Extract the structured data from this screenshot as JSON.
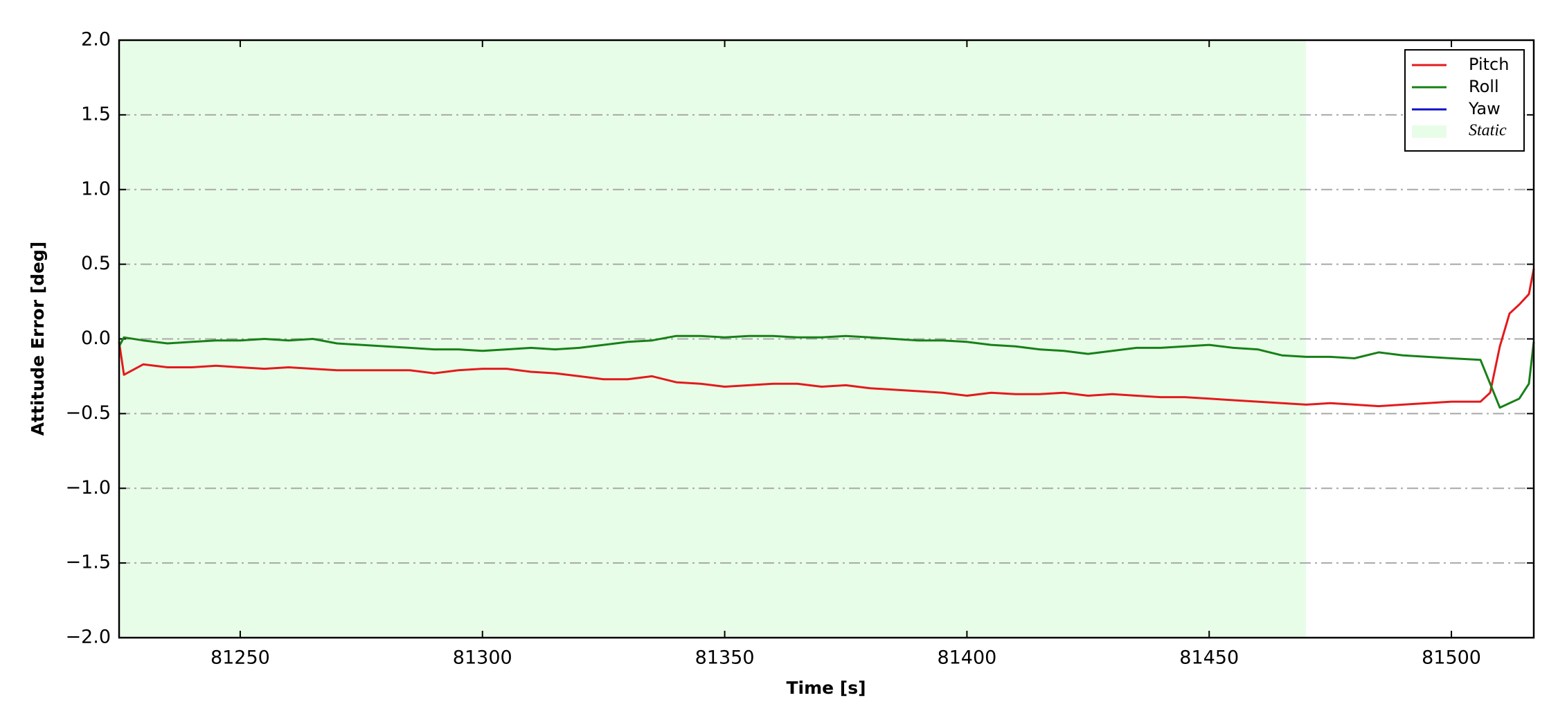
{
  "chart_data": {
    "type": "line",
    "xlabel": "Time [s]",
    "ylabel": "Attitude Error [deg]",
    "xlim": [
      81225,
      81517
    ],
    "ylim": [
      -2.0,
      2.0
    ],
    "xticks": [
      81250,
      81300,
      81350,
      81400,
      81450,
      81500
    ],
    "yticks": [
      {
        "value": -2.0,
        "label": "−2.0"
      },
      {
        "value": -1.5,
        "label": "−1.5"
      },
      {
        "value": -1.0,
        "label": "−1.0"
      },
      {
        "value": -0.5,
        "label": "−0.5"
      },
      {
        "value": 0.0,
        "label": "0.0"
      },
      {
        "value": 0.5,
        "label": "0.5"
      },
      {
        "value": 1.0,
        "label": "1.0"
      },
      {
        "value": 1.5,
        "label": "1.5"
      },
      {
        "value": 2.0,
        "label": "2.0"
      }
    ],
    "grid": true,
    "legend": "upper right",
    "static": {
      "name": "Static",
      "color": "#e8fde8",
      "xlim": [
        81225,
        81470
      ]
    },
    "x": [
      81225,
      81226,
      81230,
      81235,
      81240,
      81245,
      81250,
      81255,
      81260,
      81265,
      81270,
      81275,
      81280,
      81285,
      81290,
      81295,
      81300,
      81305,
      81310,
      81315,
      81320,
      81325,
      81330,
      81335,
      81340,
      81345,
      81350,
      81355,
      81360,
      81365,
      81370,
      81375,
      81380,
      81385,
      81390,
      81395,
      81400,
      81405,
      81410,
      81415,
      81420,
      81425,
      81430,
      81435,
      81440,
      81445,
      81450,
      81455,
      81460,
      81465,
      81470,
      81475,
      81480,
      81485,
      81490,
      81495,
      81500,
      81506,
      81508,
      81510,
      81512,
      81514,
      81516,
      81517
    ],
    "series": [
      {
        "name": "Pitch",
        "color": "#e31a1c",
        "values": [
          -0.02,
          -0.24,
          -0.17,
          -0.19,
          -0.19,
          -0.18,
          -0.19,
          -0.2,
          -0.19,
          -0.2,
          -0.21,
          -0.21,
          -0.21,
          -0.21,
          -0.23,
          -0.21,
          -0.2,
          -0.2,
          -0.22,
          -0.23,
          -0.25,
          -0.27,
          -0.27,
          -0.25,
          -0.29,
          -0.3,
          -0.32,
          -0.31,
          -0.3,
          -0.3,
          -0.32,
          -0.31,
          -0.33,
          -0.34,
          -0.35,
          -0.36,
          -0.38,
          -0.36,
          -0.37,
          -0.37,
          -0.36,
          -0.38,
          -0.37,
          -0.38,
          -0.39,
          -0.39,
          -0.4,
          -0.41,
          -0.42,
          -0.43,
          -0.44,
          -0.43,
          -0.44,
          -0.45,
          -0.44,
          -0.43,
          -0.42,
          -0.42,
          -0.36,
          -0.05,
          0.17,
          0.23,
          0.3,
          0.47
        ]
      },
      {
        "name": "Roll",
        "color": "#178017",
        "values": [
          -0.05,
          0.01,
          -0.01,
          -0.03,
          -0.02,
          -0.01,
          -0.01,
          0.0,
          -0.01,
          0.0,
          -0.03,
          -0.04,
          -0.05,
          -0.06,
          -0.07,
          -0.07,
          -0.08,
          -0.07,
          -0.06,
          -0.07,
          -0.06,
          -0.04,
          -0.02,
          -0.01,
          0.02,
          0.02,
          0.01,
          0.02,
          0.02,
          0.01,
          0.01,
          0.02,
          0.01,
          0.0,
          -0.01,
          -0.01,
          -0.02,
          -0.04,
          -0.05,
          -0.07,
          -0.08,
          -0.1,
          -0.08,
          -0.06,
          -0.06,
          -0.05,
          -0.04,
          -0.06,
          -0.07,
          -0.11,
          -0.12,
          -0.12,
          -0.13,
          -0.09,
          -0.11,
          -0.12,
          -0.13,
          -0.14,
          -0.3,
          -0.46,
          -0.43,
          -0.4,
          -0.3,
          -0.02
        ]
      },
      {
        "name": "Yaw",
        "color": "#1010c8",
        "values": [
          null,
          null,
          null,
          null,
          null,
          null,
          null,
          null,
          null,
          null,
          null,
          null,
          null,
          null,
          null,
          null,
          null,
          null,
          null,
          null,
          null,
          null,
          null,
          null,
          null,
          null,
          null,
          null,
          null,
          null,
          null,
          null,
          null,
          null,
          null,
          null,
          null,
          null,
          null,
          null,
          null,
          null,
          null,
          null,
          null,
          null,
          null,
          null,
          null,
          null,
          null,
          null,
          null,
          null,
          null,
          null,
          null,
          null,
          null,
          null,
          null,
          null,
          null,
          null
        ]
      }
    ]
  }
}
